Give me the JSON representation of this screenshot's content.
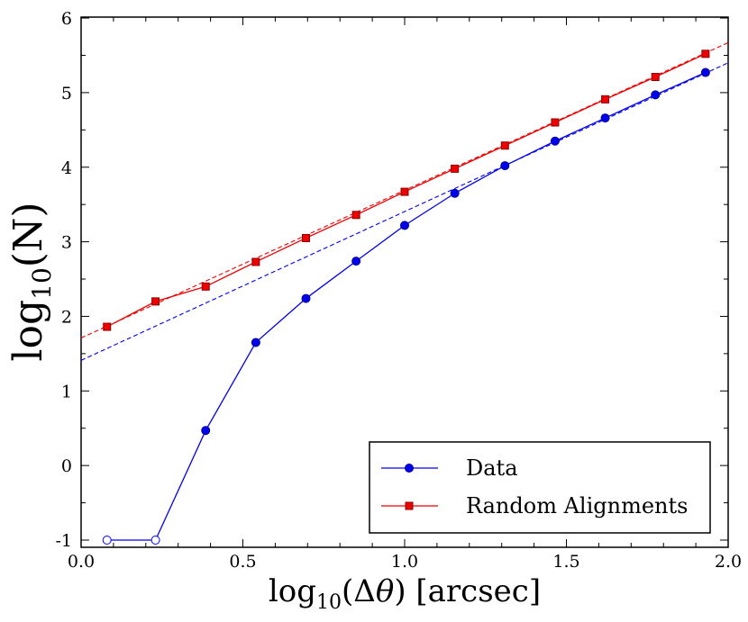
{
  "chart_data": {
    "type": "line",
    "title": "",
    "xlabel": "log10(Δθ) [arcsec]",
    "ylabel": "log10(N)",
    "xlim": [
      0.0,
      2.0
    ],
    "ylim": [
      -1.1,
      6.0
    ],
    "x_ticks": [
      0.0,
      0.5,
      1.0,
      1.5,
      2.0
    ],
    "x_tick_labels": [
      "0.0",
      "0.5",
      "1.0",
      "1.5",
      "2.0"
    ],
    "y_ticks": [
      -1,
      0,
      1,
      2,
      3,
      4,
      5,
      6
    ],
    "y_tick_labels": [
      "-1",
      "0",
      "1",
      "2",
      "3",
      "4",
      "5",
      "6"
    ],
    "grid": false,
    "legend_position": "bottom-right",
    "series": [
      {
        "name": "Data",
        "color": "#0000ee",
        "marker": "circle",
        "x": [
          0.08,
          0.23,
          0.385,
          0.54,
          0.695,
          0.85,
          1.0,
          1.155,
          1.31,
          1.465,
          1.62,
          1.775,
          1.93
        ],
        "y": [
          -1.0,
          -1.0,
          0.47,
          1.65,
          2.24,
          2.74,
          3.22,
          3.65,
          4.02,
          4.35,
          4.66,
          4.97,
          5.27
        ],
        "open_markers": [
          0,
          1
        ]
      },
      {
        "name": "Random Alignments",
        "color": "#ee0000",
        "marker": "square",
        "x": [
          0.08,
          0.23,
          0.385,
          0.54,
          0.695,
          0.85,
          1.0,
          1.155,
          1.31,
          1.465,
          1.62,
          1.775,
          1.93
        ],
        "y": [
          1.86,
          2.2,
          2.4,
          2.73,
          3.05,
          3.36,
          3.67,
          3.98,
          4.29,
          4.6,
          4.91,
          5.21,
          5.52
        ]
      }
    ],
    "fit_lines": [
      {
        "name": "Data fit",
        "color": "#0000ee",
        "x": [
          0.0,
          2.0
        ],
        "y": [
          1.41,
          5.4
        ]
      },
      {
        "name": "Random fit",
        "color": "#ee0000",
        "x": [
          0.0,
          2.0
        ],
        "y": [
          1.71,
          5.67
        ]
      }
    ]
  }
}
